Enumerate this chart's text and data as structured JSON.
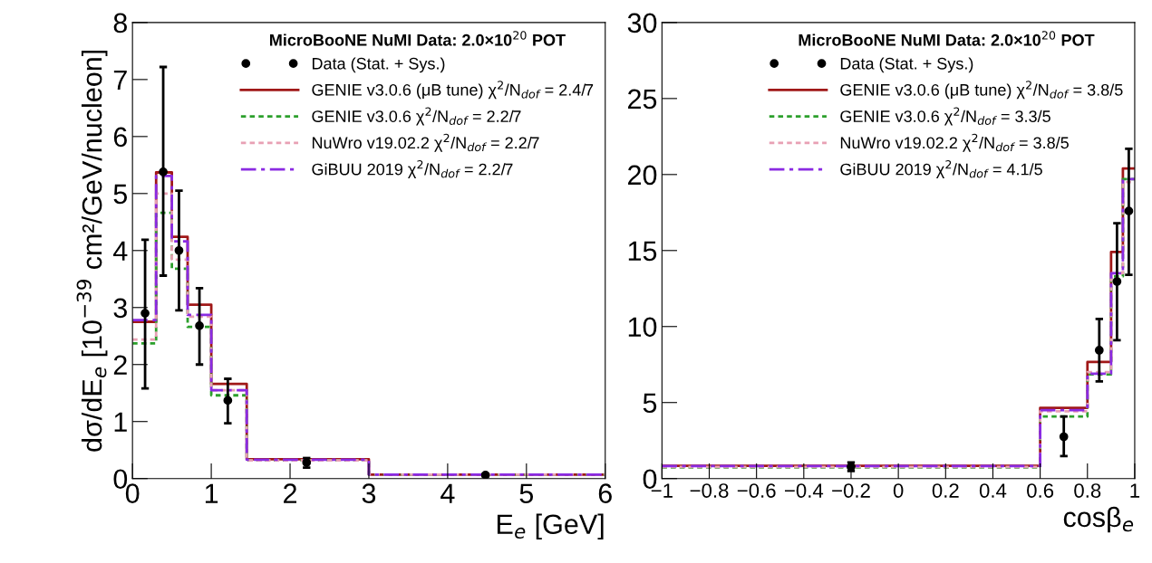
{
  "chart_data": [
    {
      "type": "histogram",
      "xlabel": "E$_{e}$ [GeV]",
      "ylabel": "dσ/dE$_{e}$ [10$^{−39}$ cm²/GeV/nucleon]",
      "legend_title": "MicroBooNE NuMI Data: 2.0×10$^{20}$ POT",
      "legend": "top right",
      "bins": [
        0,
        0.3,
        0.5,
        0.7,
        1.0,
        1.45,
        3.0,
        6.0
      ],
      "xlim": [
        0,
        6
      ],
      "xticks": [
        0,
        1,
        2,
        3,
        4,
        5,
        6
      ],
      "ylim": [
        0,
        8
      ],
      "yticks": [
        0,
        1,
        2,
        3,
        4,
        5,
        6,
        7,
        8
      ],
      "series": [
        {
          "name": "Data (Stat. + Sys.)",
          "type": "scatter",
          "color": "#000000",
          "marker": "circle",
          "x": [
            0.16,
            0.39,
            0.59,
            0.85,
            1.21,
            2.21,
            4.48
          ],
          "values": [
            2.9,
            5.38,
            4.0,
            2.68,
            1.37,
            0.28,
            0.06
          ],
          "errors": [
            [
              1.58,
              4.19
            ],
            [
              3.56,
              7.22
            ],
            [
              2.95,
              5.05
            ],
            [
              2.0,
              3.34
            ],
            [
              0.97,
              1.75
            ],
            [
              0.19,
              0.36
            ],
            [
              0.04,
              0.08
            ]
          ]
        },
        {
          "name": "GENIE v3.0.6 (μB tune) χ$^{2}$/N$_{dof}$ = 2.4/7",
          "color": "#a01818",
          "line_style": "solid",
          "values": [
            2.75,
            5.37,
            4.24,
            3.05,
            1.66,
            0.34,
            0.07
          ]
        },
        {
          "name": "GENIE v3.0.6 χ$^{2}$/N$_{dof}$ = 2.2/7",
          "color": "#2ca02c",
          "line_style": "dotted",
          "values": [
            2.37,
            4.66,
            3.68,
            2.66,
            1.46,
            0.32,
            0.07
          ]
        },
        {
          "name": "NuWro v19.02.2 χ$^{2}$/N$_{dof}$ = 2.2/7",
          "color": "#e8a0b4",
          "line_style": "dotted",
          "values": [
            2.44,
            5.0,
            3.84,
            2.84,
            1.55,
            0.32,
            0.07
          ]
        },
        {
          "name": "GiBUU 2019 χ$^{2}$/N$_{dof}$ = 2.2/7",
          "color": "#8a2be2",
          "line_style": "dashed",
          "values": [
            2.78,
            5.31,
            4.16,
            2.87,
            1.55,
            0.33,
            0.07
          ]
        }
      ]
    },
    {
      "type": "histogram",
      "xlabel": "cosβ$_{e}$",
      "legend_title": "MicroBooNE NuMI Data: 2.0×10$^{20}$ POT",
      "legend": "top right",
      "bins": [
        -1,
        0.6,
        0.8,
        0.9,
        0.95,
        1.0
      ],
      "xlim": [
        -1,
        1
      ],
      "xticks": [
        {
          "value": -1,
          "label": "−1"
        },
        {
          "value": -0.8,
          "label": "−0.8"
        },
        {
          "value": -0.6,
          "label": "−0.6"
        },
        {
          "value": -0.4,
          "label": "−0.4"
        },
        {
          "value": -0.2,
          "label": "−0.2"
        },
        0,
        0.2,
        0.4,
        0.6,
        0.8,
        1
      ],
      "ylim": [
        0,
        30
      ],
      "yticks": [
        0,
        5,
        10,
        15,
        20,
        25,
        30
      ],
      "series": [
        {
          "name": "Data (Stat. + Sys.)",
          "type": "scatter",
          "color": "#000000",
          "marker": "circle",
          "x": [
            -0.2,
            0.7,
            0.85,
            0.925,
            0.975
          ],
          "values": [
            0.77,
            2.75,
            8.44,
            12.96,
            17.6
          ],
          "errors": [
            [
              0.5,
              1.06
            ],
            [
              1.48,
              4.08
            ],
            [
              6.39,
              10.5
            ],
            [
              9.1,
              16.8
            ],
            [
              13.4,
              21.7
            ]
          ]
        },
        {
          "name": "GENIE v3.0.6 (μB tune) χ$^{2}$/N$_{dof}$ = 3.8/5",
          "color": "#a01818",
          "line_style": "solid",
          "values": [
            0.84,
            4.65,
            7.67,
            14.9,
            20.4
          ]
        },
        {
          "name": "GENIE v3.0.6 χ$^{2}$/N$_{dof}$ = 3.3/5",
          "color": "#2ca02c",
          "line_style": "dotted",
          "values": [
            0.73,
            4.08,
            6.85,
            13.3,
            19.7
          ]
        },
        {
          "name": "NuWro v19.02.2 χ$^{2}$/N$_{dof}$ = 3.8/5",
          "color": "#e8a0b4",
          "line_style": "dotted",
          "values": [
            0.77,
            4.43,
            7.0,
            13.5,
            19.5
          ]
        },
        {
          "name": "GiBUU 2019 χ$^{2}$/N$_{dof}$ = 4.1/5",
          "color": "#8a2be2",
          "line_style": "dashed",
          "values": [
            0.82,
            4.5,
            6.9,
            13.5,
            19.7
          ]
        }
      ]
    }
  ]
}
